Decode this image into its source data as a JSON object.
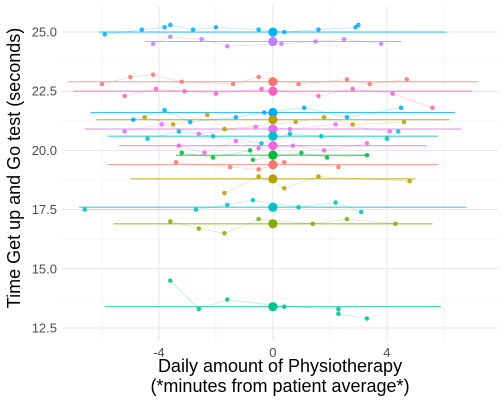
{
  "chart_data": {
    "type": "scatter",
    "title": "",
    "xlabel_lines": [
      "Daily amount of Physiotherapy",
      "(*minutes from patient average*)"
    ],
    "ylabel": "Time Get up and Go test (seconds)",
    "xlim": [
      -7.4,
      7.9
    ],
    "ylim": [
      11.95,
      26.1
    ],
    "x_ticks": [
      -4,
      0,
      4
    ],
    "y_ticks": [
      12.5,
      15.0,
      17.5,
      20.0,
      22.5,
      25.0
    ],
    "x_tick_labels": [
      "-4",
      "0",
      "4"
    ],
    "y_tick_labels": [
      "12.5",
      "15.0",
      "17.5",
      "20.0",
      "22.5",
      "25.0"
    ],
    "grid": true,
    "legend": "none",
    "patients": [
      {
        "mean": 25.0,
        "x_range": [
          -6.1,
          6.1
        ],
        "color": "#00B0F6",
        "points": [
          [
            -5.9,
            24.9
          ],
          [
            -4.6,
            25.1
          ],
          [
            -3.8,
            25.2
          ],
          [
            -3.6,
            25.3
          ],
          [
            -2.8,
            25.1
          ],
          [
            -2.0,
            25.2
          ],
          [
            -0.5,
            25.1
          ],
          [
            0.4,
            25.0
          ],
          [
            1.6,
            25.1
          ],
          [
            2.9,
            25.2
          ],
          [
            3.0,
            25.3
          ]
        ]
      },
      {
        "mean": 24.6,
        "x_range": [
          -4.5,
          4.5
        ],
        "color": "#C77CFF",
        "points": [
          [
            -4.2,
            24.5
          ],
          [
            -3.6,
            24.8
          ],
          [
            -2.5,
            24.7
          ],
          [
            -1.6,
            24.4
          ],
          [
            0.3,
            24.5
          ],
          [
            1.5,
            24.6
          ],
          [
            2.5,
            24.7
          ],
          [
            3.8,
            24.5
          ]
        ]
      },
      {
        "mean": 22.9,
        "x_range": [
          -7.2,
          7.2
        ],
        "color": "#F8766D",
        "points": [
          [
            -6.0,
            22.8
          ],
          [
            -5.0,
            23.1
          ],
          [
            -4.2,
            23.2
          ],
          [
            -3.2,
            22.9
          ],
          [
            -1.4,
            22.8
          ],
          [
            -0.5,
            23.1
          ],
          [
            0.9,
            22.8
          ],
          [
            2.6,
            23.0
          ],
          [
            3.4,
            22.8
          ],
          [
            4.7,
            23.0
          ]
        ]
      },
      {
        "mean": 22.5,
        "x_range": [
          -7.0,
          7.0
        ],
        "color": "#FF61C3",
        "points": [
          [
            -5.2,
            22.3
          ],
          [
            -4.1,
            22.6
          ],
          [
            -3.1,
            22.5
          ],
          [
            -2.0,
            22.4
          ],
          [
            -0.4,
            22.6
          ],
          [
            1.6,
            22.3
          ],
          [
            2.8,
            22.6
          ],
          [
            4.2,
            22.4
          ],
          [
            5.6,
            21.8
          ]
        ]
      },
      {
        "mean": 21.6,
        "x_range": [
          -6.4,
          6.4
        ],
        "color": "#00A9FF",
        "points": [
          [
            -4.9,
            21.3
          ],
          [
            -3.8,
            21.7
          ],
          [
            -2.9,
            21.2
          ],
          [
            -1.3,
            21.4
          ],
          [
            -0.3,
            21.6
          ],
          [
            1.1,
            21.8
          ],
          [
            2.6,
            21.4
          ],
          [
            4.5,
            21.8
          ]
        ]
      },
      {
        "mean": 21.3,
        "x_range": [
          -6.2,
          6.2
        ],
        "color": "#B79F00",
        "points": [
          [
            -4.5,
            21.4
          ],
          [
            -3.5,
            21.1
          ],
          [
            -2.3,
            21.5
          ],
          [
            -1.7,
            20.9
          ],
          [
            0.8,
            21.2
          ],
          [
            1.8,
            21.4
          ],
          [
            2.8,
            21.1
          ],
          [
            4.6,
            21.2
          ]
        ]
      },
      {
        "mean": 20.9,
        "x_range": [
          -6.6,
          6.6
        ],
        "color": "#E76BF3",
        "points": [
          [
            -5.2,
            20.8
          ],
          [
            -3.9,
            21.1
          ],
          [
            -2.6,
            20.7
          ],
          [
            -0.6,
            21.0
          ],
          [
            0.6,
            20.9
          ],
          [
            2.2,
            21.1
          ],
          [
            4.1,
            20.8
          ]
        ]
      },
      {
        "mean": 20.6,
        "x_range": [
          -5.8,
          5.8
        ],
        "color": "#00BFC4",
        "points": [
          [
            -4.4,
            20.5
          ],
          [
            -3.3,
            20.8
          ],
          [
            -2.1,
            20.6
          ],
          [
            -0.4,
            20.3
          ],
          [
            0.6,
            20.7
          ],
          [
            1.7,
            20.6
          ],
          [
            4.0,
            20.5
          ],
          [
            4.4,
            20.8
          ]
        ]
      },
      {
        "mean": 20.2,
        "x_range": [
          -5.4,
          5.4
        ],
        "color": "#F564E3",
        "points": [
          [
            -3.3,
            20.2
          ],
          [
            -2.4,
            19.9
          ],
          [
            -1.3,
            20.4
          ],
          [
            -0.5,
            20.1
          ],
          [
            0.7,
            20.2
          ],
          [
            1.8,
            20.0
          ],
          [
            3.3,
            20.3
          ]
        ]
      },
      {
        "mean": 19.8,
        "x_range": [
          -3.4,
          3.4
        ],
        "color": "#00BA38",
        "points": [
          [
            -3.2,
            19.9
          ],
          [
            -2.1,
            19.7
          ],
          [
            -0.8,
            20.0
          ],
          [
            -0.7,
            19.6
          ],
          [
            1.0,
            19.9
          ],
          [
            1.9,
            19.7
          ],
          [
            3.3,
            19.8
          ]
        ]
      },
      {
        "mean": 19.4,
        "x_range": [
          -5.8,
          5.8
        ],
        "color": "#F8766D",
        "points": [
          [
            -3.4,
            19.5
          ],
          [
            -1.5,
            19.3
          ],
          [
            -0.5,
            19.2
          ],
          [
            0.4,
            19.5
          ],
          [
            2.3,
            19.3
          ]
        ]
      },
      {
        "mean": 18.8,
        "x_range": [
          -5.0,
          5.0
        ],
        "color": "#B79F00",
        "points": [
          [
            -1.7,
            18.2
          ],
          [
            -0.5,
            18.9
          ],
          [
            0.4,
            18.4
          ],
          [
            1.6,
            18.9
          ],
          [
            4.8,
            18.7
          ]
        ]
      },
      {
        "mean": 17.6,
        "x_range": [
          -6.8,
          6.8
        ],
        "color": "#00BFC4",
        "points": [
          [
            -6.6,
            17.5
          ],
          [
            -2.7,
            17.5
          ],
          [
            -1.6,
            17.7
          ],
          [
            -0.7,
            17.9
          ],
          [
            0.9,
            17.6
          ],
          [
            2.2,
            17.8
          ],
          [
            3.1,
            17.4
          ]
        ]
      },
      {
        "mean": 16.9,
        "x_range": [
          -5.6,
          5.6
        ],
        "color": "#7CAE00",
        "points": [
          [
            -3.6,
            17.0
          ],
          [
            -2.6,
            16.7
          ],
          [
            -1.7,
            16.5
          ],
          [
            -0.5,
            17.1
          ],
          [
            1.4,
            16.9
          ],
          [
            2.6,
            17.1
          ],
          [
            4.3,
            16.9
          ]
        ]
      },
      {
        "mean": 13.4,
        "x_range": [
          -5.9,
          5.9
        ],
        "color": "#00C094",
        "points": [
          [
            -3.6,
            14.5
          ],
          [
            -2.6,
            13.3
          ],
          [
            -1.6,
            13.7
          ],
          [
            0.4,
            13.4
          ],
          [
            2.3,
            13.3
          ],
          [
            2.3,
            13.1
          ],
          [
            3.3,
            12.9
          ]
        ]
      }
    ]
  }
}
